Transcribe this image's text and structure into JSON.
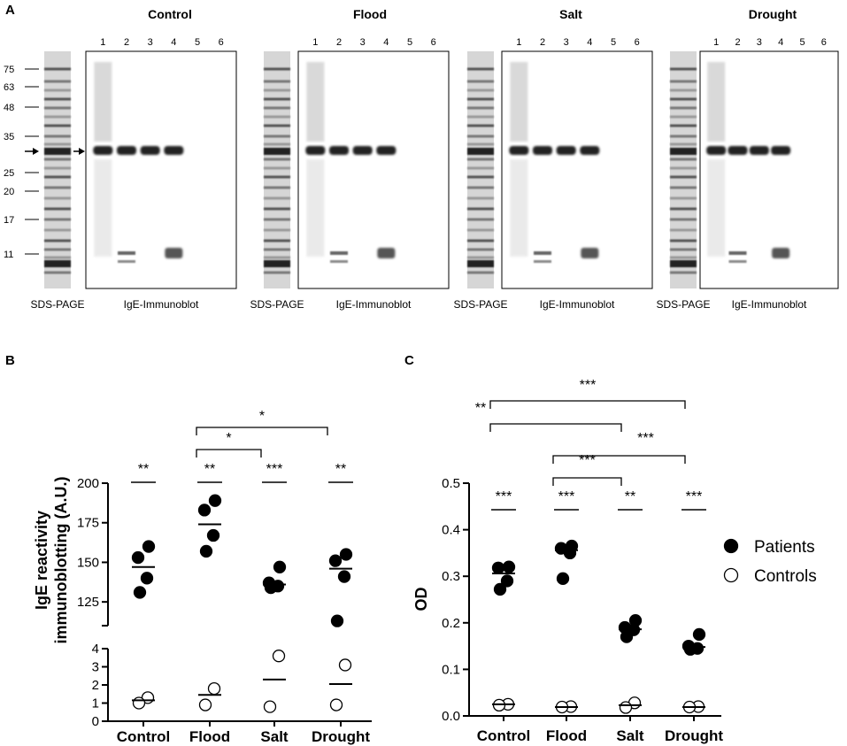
{
  "panel_a": {
    "letter": "A",
    "panels": [
      {
        "title": "Control",
        "ladder": [
          [
            "6000",
            64
          ],
          [
            "4800",
            60
          ]
        ],
        "blot_bands": [
          [
            110,
            5
          ],
          [
            212,
            8
          ],
          [
            162,
            10
          ],
          [
            240,
            9
          ]
        ]
      },
      {
        "title": "Flood"
      },
      {
        "title": "Salt"
      },
      {
        "title": "Drought"
      }
    ],
    "lanes": [
      "1",
      "2",
      "3",
      "4",
      "5",
      "6"
    ],
    "markers": [
      "75",
      "63",
      "48",
      "35",
      "25",
      "20",
      "17",
      "11"
    ],
    "sds_label": "SDS-PAGE",
    "blot_label": "IgE-Immunoblot"
  },
  "chart_data": [
    {
      "type": "scatter",
      "letter": "B",
      "ylabel_line1": "IgE reactivity",
      "ylabel_line2": "immunoblotting (A.U.)",
      "categories": [
        "Control",
        "Flood",
        "Salt",
        "Drought"
      ],
      "upper_axis": {
        "ylim": [
          110,
          200
        ],
        "ticks": [
          "125",
          "150",
          "175",
          "200"
        ]
      },
      "lower_axis": {
        "ylim": [
          0,
          4
        ],
        "ticks": [
          "0",
          "1",
          "2",
          "3",
          "4"
        ]
      },
      "series": [
        {
          "name": "Patients",
          "filled": true,
          "values": [
            [
              160,
              153,
              140,
              131
            ],
            [
              189,
              183,
              167,
              157
            ],
            [
              147,
              137,
              135,
              134
            ],
            [
              155,
              151,
              141,
              113
            ]
          ],
          "means": [
            147,
            174,
            136,
            146
          ]
        },
        {
          "name": "Controls",
          "filled": false,
          "values": [
            [
              1.3,
              1.0
            ],
            [
              1.8,
              0.9
            ],
            [
              3.6,
              0.8
            ],
            [
              3.1,
              0.9
            ]
          ],
          "means": [
            1.15,
            1.45,
            2.3,
            2.05
          ]
        }
      ],
      "significance": [
        {
          "from": 0,
          "to": 0,
          "label": "**"
        },
        {
          "from": 1,
          "to": 1,
          "label": "**"
        },
        {
          "from": 2,
          "to": 2,
          "label": "***"
        },
        {
          "from": 3,
          "to": 3,
          "label": "**"
        },
        {
          "from": 1,
          "to": 2,
          "label": "*"
        },
        {
          "from": 1,
          "to": 3,
          "label": "*"
        }
      ]
    },
    {
      "type": "scatter",
      "letter": "C",
      "ylabel": "OD",
      "categories": [
        "Control",
        "Flood",
        "Salt",
        "Drought"
      ],
      "ylim": [
        0,
        0.5
      ],
      "ticks": [
        "0.0",
        "0.1",
        "0.2",
        "0.3",
        "0.4",
        "0.5"
      ],
      "series": [
        {
          "name": "Patients",
          "filled": true,
          "values": [
            [
              0.32,
              0.318,
              0.29,
              0.272
            ],
            [
              0.365,
              0.36,
              0.35,
              0.295
            ],
            [
              0.205,
              0.19,
              0.185,
              0.17
            ],
            [
              0.175,
              0.15,
              0.145,
              0.143
            ]
          ],
          "means": [
            0.306,
            0.356,
            0.186,
            0.148
          ]
        },
        {
          "name": "Controls",
          "filled": false,
          "values": [
            [
              0.025,
              0.023
            ],
            [
              0.02,
              0.019
            ],
            [
              0.028,
              0.018
            ],
            [
              0.02,
              0.019
            ]
          ],
          "means": [
            0.025,
            0.019,
            0.023,
            0.019
          ]
        }
      ],
      "significance": [
        {
          "from": 0,
          "to": 0,
          "label": "***"
        },
        {
          "from": 1,
          "to": 1,
          "label": "***"
        },
        {
          "from": 2,
          "to": 2,
          "label": "**"
        },
        {
          "from": 3,
          "to": 3,
          "label": "***"
        },
        {
          "from": 1,
          "to": 2,
          "label": "***"
        },
        {
          "from": 1,
          "to": 3,
          "label": "***"
        },
        {
          "from": 0,
          "to": 2,
          "label": "**"
        },
        {
          "from": 0,
          "to": 3,
          "label": "***"
        }
      ],
      "legend": {
        "position": "right",
        "entries": [
          "Patients",
          "Controls"
        ]
      }
    }
  ]
}
